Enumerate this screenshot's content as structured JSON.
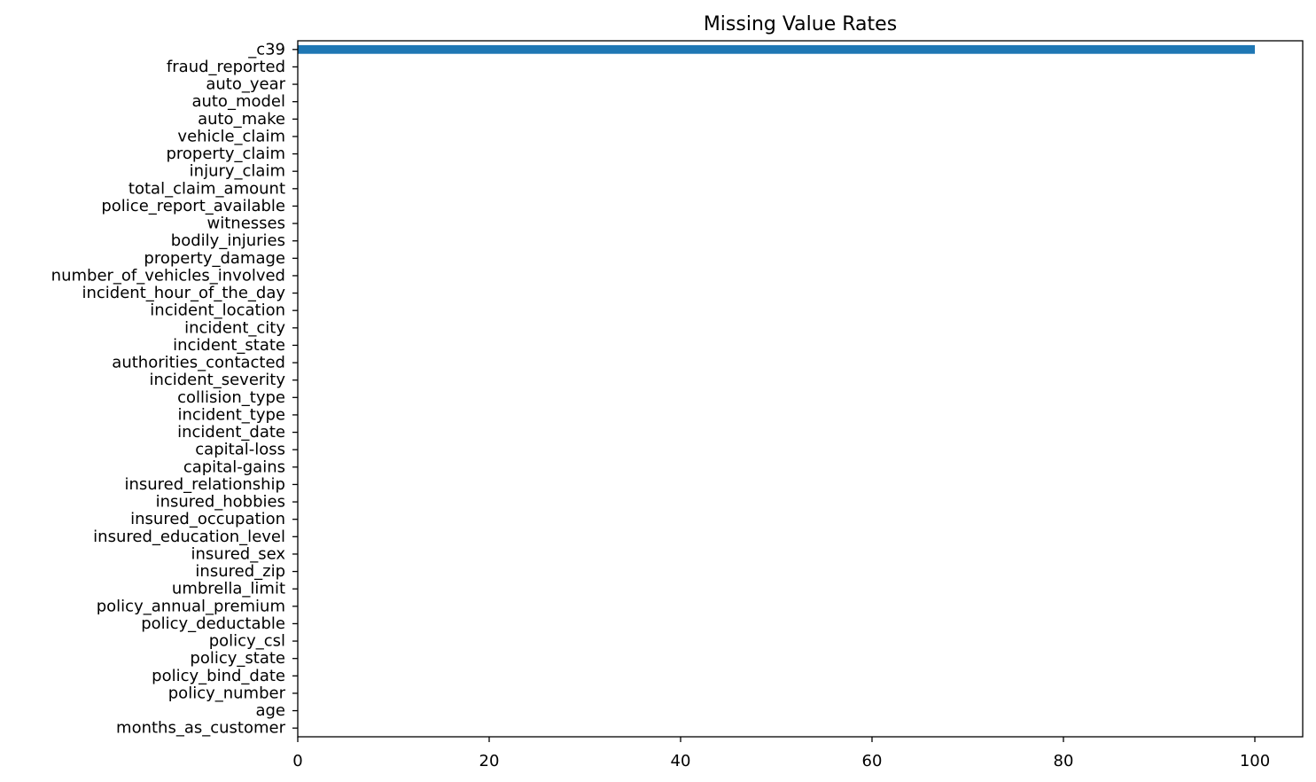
{
  "chart_data": {
    "type": "bar",
    "orientation": "horizontal",
    "title": "Missing Value Rates",
    "xlabel": "",
    "ylabel": "",
    "xlim": [
      0,
      105
    ],
    "xticks": [
      0,
      20,
      40,
      60,
      80,
      100
    ],
    "grid": false,
    "bar_color": "#1f77b4",
    "categories": [
      "months_as_customer",
      "age",
      "policy_number",
      "policy_bind_date",
      "policy_state",
      "policy_csl",
      "policy_deductable",
      "policy_annual_premium",
      "umbrella_limit",
      "insured_zip",
      "insured_sex",
      "insured_education_level",
      "insured_occupation",
      "insured_hobbies",
      "insured_relationship",
      "capital-gains",
      "capital-loss",
      "incident_date",
      "incident_type",
      "collision_type",
      "incident_severity",
      "authorities_contacted",
      "incident_state",
      "incident_city",
      "incident_location",
      "incident_hour_of_the_day",
      "number_of_vehicles_involved",
      "property_damage",
      "bodily_injuries",
      "witnesses",
      "police_report_available",
      "total_claim_amount",
      "injury_claim",
      "property_claim",
      "vehicle_claim",
      "auto_make",
      "auto_model",
      "auto_year",
      "fraud_reported",
      "_c39"
    ],
    "values": [
      0,
      0,
      0,
      0,
      0,
      0,
      0,
      0,
      0,
      0,
      0,
      0,
      0,
      0,
      0,
      0,
      0,
      0,
      0,
      0,
      0,
      0,
      0,
      0,
      0,
      0,
      0,
      0,
      0,
      0,
      0,
      0,
      0,
      0,
      0,
      0,
      0,
      0,
      0,
      100
    ]
  }
}
